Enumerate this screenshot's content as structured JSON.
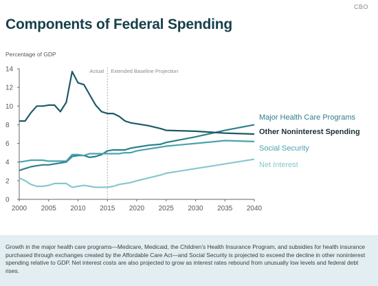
{
  "brand": "CBO",
  "chart_data": {
    "type": "line",
    "title": "Components of Federal Spending",
    "ylabel": "Percentage of GDP",
    "xlabel": "",
    "xlim": [
      2000,
      2040
    ],
    "ylim": [
      0,
      14
    ],
    "xticks": [
      2000,
      2005,
      2010,
      2015,
      2020,
      2025,
      2030,
      2035,
      2040
    ],
    "yticks": [
      0,
      2,
      4,
      6,
      8,
      10,
      12,
      14
    ],
    "divider_year": 2015,
    "annotations": {
      "left": "Actual",
      "right": "Extended Baseline Projection"
    },
    "grid": false,
    "series": [
      {
        "name": "Major Health Care Programs",
        "color": "#2c7f8d",
        "x": [
          2000,
          2001,
          2002,
          2003,
          2004,
          2005,
          2006,
          2007,
          2008,
          2009,
          2010,
          2011,
          2012,
          2013,
          2014,
          2015,
          2016,
          2017,
          2018,
          2019,
          2020,
          2022,
          2024,
          2025,
          2030,
          2035,
          2040
        ],
        "y": [
          3.1,
          3.3,
          3.5,
          3.6,
          3.7,
          3.7,
          3.8,
          3.9,
          4.0,
          4.6,
          4.7,
          4.7,
          4.5,
          4.6,
          4.8,
          5.2,
          5.3,
          5.3,
          5.3,
          5.5,
          5.6,
          5.8,
          5.9,
          6.1,
          6.7,
          7.4,
          8.0
        ]
      },
      {
        "name": "Other Noninterest Spending",
        "color": "#1b5a64",
        "x": [
          2000,
          2001,
          2002,
          2003,
          2004,
          2005,
          2006,
          2007,
          2008,
          2009,
          2010,
          2011,
          2012,
          2013,
          2014,
          2015,
          2016,
          2017,
          2018,
          2019,
          2020,
          2022,
          2024,
          2025,
          2030,
          2035,
          2040
        ],
        "y": [
          8.4,
          8.4,
          9.3,
          10.0,
          10.0,
          10.1,
          10.1,
          9.4,
          10.4,
          13.7,
          12.5,
          12.3,
          11.2,
          10.1,
          9.4,
          9.2,
          9.2,
          8.9,
          8.4,
          8.2,
          8.1,
          7.9,
          7.6,
          7.4,
          7.3,
          7.1,
          7.0
        ]
      },
      {
        "name": "Social Security",
        "color": "#4aa3ad",
        "x": [
          2000,
          2001,
          2002,
          2003,
          2004,
          2005,
          2006,
          2007,
          2008,
          2009,
          2010,
          2011,
          2012,
          2013,
          2014,
          2015,
          2016,
          2017,
          2018,
          2019,
          2020,
          2022,
          2024,
          2025,
          2030,
          2035,
          2040
        ],
        "y": [
          4.0,
          4.1,
          4.2,
          4.2,
          4.2,
          4.1,
          4.1,
          4.1,
          4.1,
          4.8,
          4.8,
          4.7,
          4.9,
          4.9,
          4.9,
          4.9,
          4.9,
          4.9,
          5.0,
          5.0,
          5.2,
          5.4,
          5.6,
          5.7,
          6.0,
          6.3,
          6.2
        ]
      },
      {
        "name": "Net Interest",
        "color": "#86c7ce",
        "x": [
          2000,
          2001,
          2002,
          2003,
          2004,
          2005,
          2006,
          2007,
          2008,
          2009,
          2010,
          2011,
          2012,
          2013,
          2014,
          2015,
          2016,
          2017,
          2018,
          2019,
          2020,
          2022,
          2024,
          2025,
          2030,
          2035,
          2040
        ],
        "y": [
          2.3,
          2.0,
          1.6,
          1.4,
          1.4,
          1.5,
          1.7,
          1.7,
          1.7,
          1.3,
          1.4,
          1.5,
          1.4,
          1.3,
          1.3,
          1.3,
          1.4,
          1.6,
          1.7,
          1.8,
          2.0,
          2.3,
          2.6,
          2.8,
          3.3,
          3.8,
          4.3
        ]
      }
    ]
  },
  "caption": "Growth in the major health care programs—Medicare, Medicaid, the Children’s Health Insurance Program, and subsidies for health insurance purchased through exchanges created by the Affordable Care Act—and Social Security is projected to exceed the decline in other noninterest spending relative to GDP. Net interest costs are also projected to grow as interest rates rebound from unusually low levels and federal debt rises."
}
